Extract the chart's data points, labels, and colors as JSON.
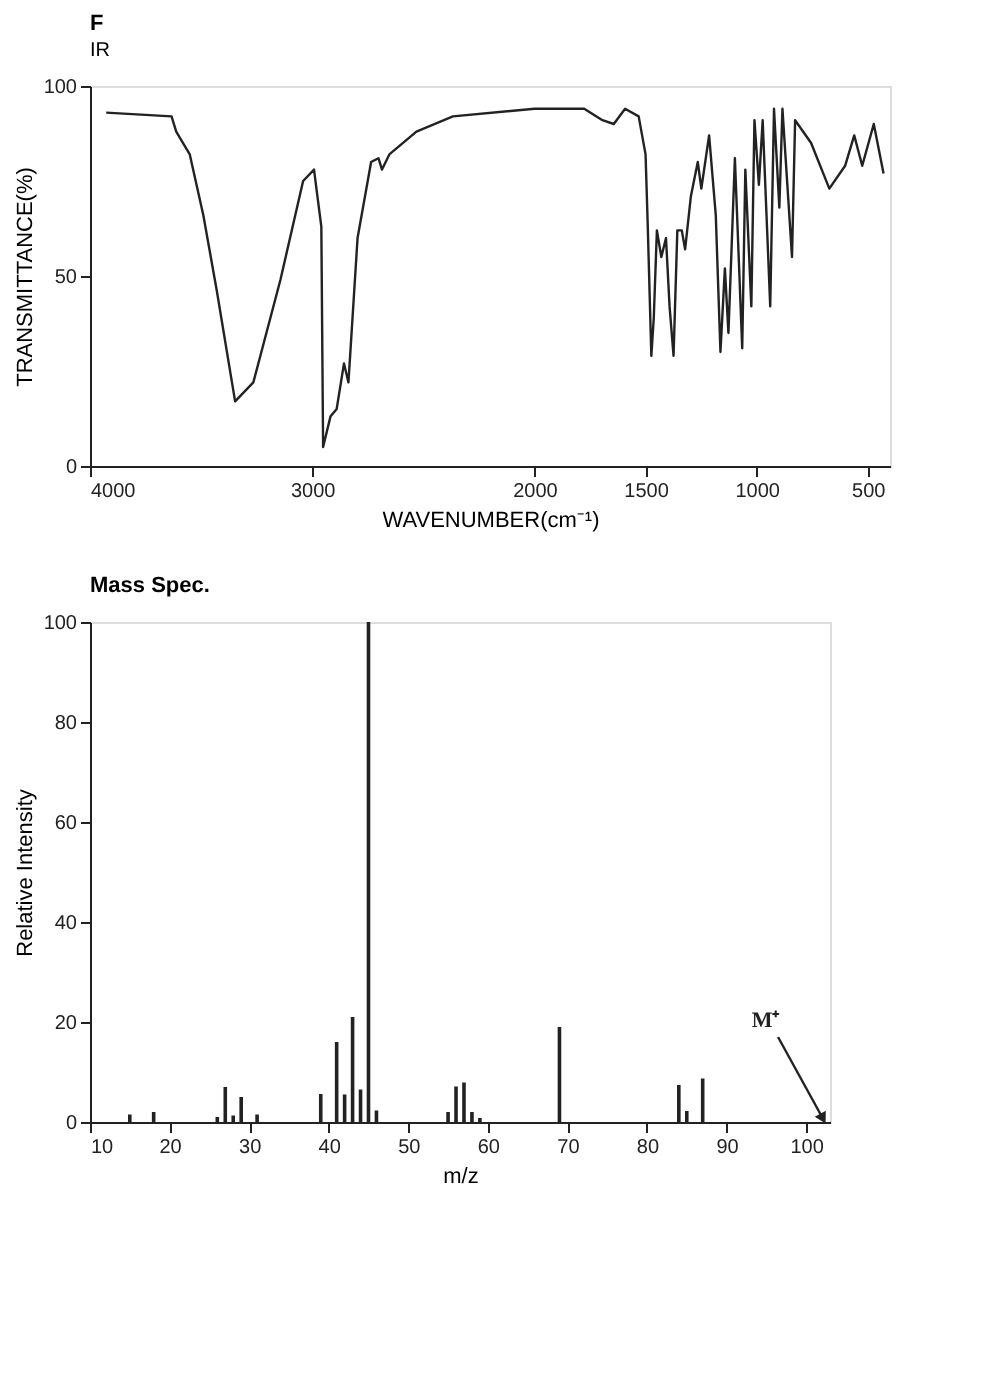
{
  "chart_data": [
    {
      "type": "line",
      "title": "F",
      "subtitle": "IR",
      "xlabel": "WAVENUMBER(cm⁻¹)",
      "ylabel": "TRANSMITTANCE(%)",
      "x": [
        3927,
        3633,
        3612,
        3551,
        3490,
        3429,
        3347,
        3265,
        3143,
        3041,
        2992,
        2959,
        2951,
        2918,
        2890,
        2857,
        2837,
        2796,
        2735,
        2702,
        2686,
        2653,
        2531,
        2367,
        2000,
        1776,
        1694,
        1643,
        1592,
        1531,
        1500,
        1490,
        1474,
        1463,
        1449,
        1429,
        1408,
        1392,
        1374,
        1357,
        1337,
        1322,
        1296,
        1265,
        1249,
        1214,
        1184,
        1163,
        1143,
        1127,
        1098,
        1065,
        1051,
        1024,
        1010,
        990,
        973,
        939,
        922,
        898,
        884,
        841,
        827,
        755,
        673,
        602,
        561,
        525,
        473,
        429
      ],
      "series": [
        {
          "color": "#222222",
          "values": [
            93,
            92,
            88,
            82,
            66,
            46,
            17,
            22,
            49,
            75,
            78,
            63,
            5,
            13,
            15,
            27,
            22,
            60,
            80,
            81,
            78,
            82,
            88,
            92,
            94,
            94,
            91,
            90,
            94,
            92,
            82,
            63,
            29,
            39,
            62,
            55,
            60,
            42,
            29,
            62,
            62,
            57,
            71,
            80,
            73,
            87,
            66,
            30,
            52,
            35,
            81,
            31,
            78,
            42,
            91,
            74,
            91,
            42,
            94,
            68,
            94,
            55,
            91,
            85,
            73,
            79,
            87,
            79,
            90,
            77
          ]
        }
      ],
      "xlim": [
        4000,
        400
      ],
      "xticks": [
        4000,
        3000,
        2000,
        1500,
        1000,
        500
      ],
      "ylim": [
        0,
        100
      ],
      "yticks": [
        0,
        50,
        100
      ],
      "grid": false,
      "marker": "none",
      "line_style": "solid"
    },
    {
      "type": "bar",
      "title": "Mass Spec.",
      "xlabel": "m/z",
      "ylabel": "Relative Intensity",
      "x": [
        15,
        18,
        26,
        27,
        28,
        29,
        31,
        39,
        41,
        42,
        43,
        44,
        45,
        46,
        55,
        56,
        57,
        58,
        59,
        69,
        84,
        85,
        87
      ],
      "series": [
        {
          "color": "#222222",
          "values": [
            1.5,
            2,
            1,
            7,
            1.3,
            5,
            1.5,
            5.6,
            16,
            5.5,
            21,
            6.5,
            100,
            2.3,
            2,
            7.1,
            7.9,
            2,
            0.8,
            19,
            7.4,
            2.2,
            8.7
          ]
        }
      ],
      "xlim": [
        10,
        103
      ],
      "xticks": [
        10,
        20,
        30,
        40,
        50,
        60,
        70,
        80,
        90,
        100
      ],
      "ylim": [
        0,
        100
      ],
      "yticks": [
        0,
        20,
        40,
        60,
        80,
        100
      ],
      "grid": false,
      "annotations": [
        {
          "text": "M⁺",
          "x": 102,
          "y": 1
        }
      ]
    }
  ]
}
